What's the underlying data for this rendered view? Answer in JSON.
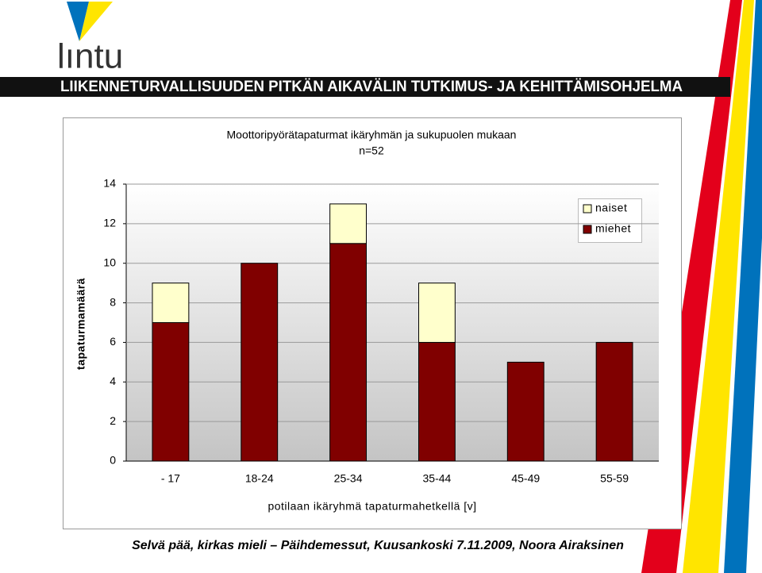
{
  "header": {
    "logo": "lıntu",
    "banner": "LIIKENNETURVALLISUUDEN PITKÄN AIKAVÄLIN TUTKIMUS- JA KEHITTÄMISOHJELMA"
  },
  "chart_data": {
    "type": "bar",
    "stacked": true,
    "title": "Moottoripyörätapaturmat ikäryhmän ja sukupuolen mukaan",
    "subtitle": "n=52",
    "x_label": "potilaan ikäryhmä tapaturmahetkellä [v]",
    "y_label": "tapaturmamäärä",
    "categories": [
      "- 17",
      "18-24",
      "25-34",
      "35-44",
      "45-49",
      "55-59"
    ],
    "series": [
      {
        "name": "miehet",
        "color": "#800000",
        "values": [
          7,
          10,
          11,
          6,
          5,
          6
        ]
      },
      {
        "name": "naiset",
        "color": "#ffffcc",
        "values": [
          2,
          0,
          2,
          3,
          0,
          0
        ]
      }
    ],
    "ylim": [
      0,
      14
    ],
    "yticks": [
      0,
      2,
      4,
      6,
      8,
      10,
      12,
      14
    ],
    "grid": true,
    "legend": "upper-right"
  },
  "footer": "Selvä pää, kirkas mieli – Päihdemessut, Kuusankoski 7.11.2009, Noora Airaksinen"
}
